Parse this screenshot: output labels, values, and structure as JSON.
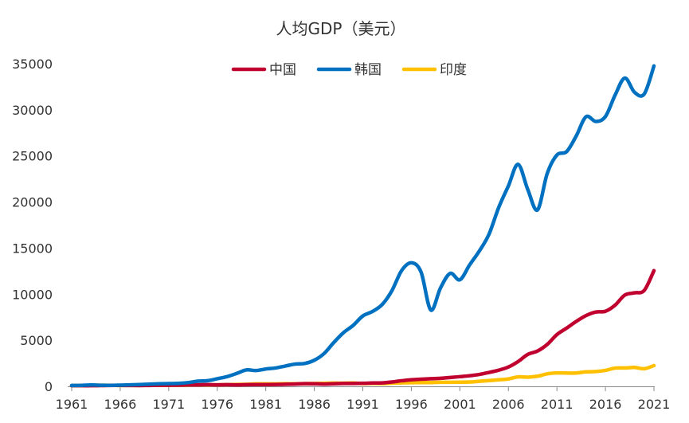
{
  "chart_data": {
    "type": "line",
    "title": "人均GDP（美元）",
    "xlabel": "",
    "ylabel": "",
    "xlim": [
      1961,
      2021
    ],
    "ylim": [
      0,
      35000
    ],
    "yticks": [
      0,
      5000,
      10000,
      15000,
      20000,
      25000,
      30000,
      35000
    ],
    "xticks": [
      1961,
      1966,
      1971,
      1976,
      1981,
      1986,
      1991,
      1996,
      2001,
      2006,
      2011,
      2016,
      2021
    ],
    "legend_position": "top-center",
    "x": [
      1961,
      1962,
      1963,
      1964,
      1965,
      1966,
      1967,
      1968,
      1969,
      1970,
      1971,
      1972,
      1973,
      1974,
      1975,
      1976,
      1977,
      1978,
      1979,
      1980,
      1981,
      1982,
      1983,
      1984,
      1985,
      1986,
      1987,
      1988,
      1989,
      1990,
      1991,
      1992,
      1993,
      1994,
      1995,
      1996,
      1997,
      1998,
      1999,
      2000,
      2001,
      2002,
      2003,
      2004,
      2005,
      2006,
      2007,
      2008,
      2009,
      2010,
      2011,
      2012,
      2013,
      2014,
      2015,
      2016,
      2017,
      2018,
      2019,
      2020,
      2021
    ],
    "series": [
      {
        "name": "中国",
        "color": "#C0002E",
        "values": [
          76,
          71,
          71,
          86,
          99,
          105,
          98,
          92,
          102,
          114,
          119,
          133,
          157,
          161,
          179,
          164,
          186,
          157,
          184,
          195,
          197,
          203,
          225,
          251,
          294,
          282,
          252,
          284,
          311,
          318,
          333,
          366,
          377,
          473,
          610,
          709,
          781,
          828,
          873,
          959,
          1053,
          1149,
          1289,
          1509,
          1753,
          2099,
          2694,
          3468,
          3832,
          4550,
          5618,
          6317,
          7051,
          7679,
          8066,
          8148,
          8817,
          9905,
          10144,
          10409,
          12556
        ]
      },
      {
        "name": "韩国",
        "color": "#0070C0",
        "values": [
          94,
          107,
          146,
          124,
          109,
          133,
          161,
          198,
          243,
          279,
          301,
          324,
          406,
          563,
          615,
          830,
          1055,
          1400,
          1784,
          1715,
          1883,
          1993,
          2199,
          2413,
          2482,
          2835,
          3555,
          4748,
          5817,
          6610,
          7637,
          8127,
          8885,
          10385,
          12565,
          13403,
          12398,
          8282,
          10672,
          12257,
          11561,
          13165,
          14673,
          16496,
          19403,
          21744,
          24086,
          21350,
          19144,
          23087,
          25096,
          25459,
          27180,
          29253,
          28737,
          29274,
          31605,
          33447,
          31902,
          31721,
          34758
        ]
      },
      {
        "name": "印度",
        "color": "#FFC000",
        "values": [
          86,
          90,
          101,
          116,
          119,
          90,
          96,
          99,
          107,
          112,
          119,
          123,
          143,
          163,
          158,
          161,
          186,
          206,
          224,
          267,
          271,
          275,
          292,
          277,
          296,
          310,
          340,
          354,
          346,
          368,
          303,
          316,
          301,
          346,
          374,
          400,
          415,
          413,
          442,
          443,
          452,
          471,
          546,
          627,
          714,
          806,
          1028,
          999,
          1102,
          1358,
          1458,
          1444,
          1450,
          1574,
          1606,
          1733,
          1981,
          1997,
          2050,
          1913,
          2257
        ]
      }
    ]
  }
}
